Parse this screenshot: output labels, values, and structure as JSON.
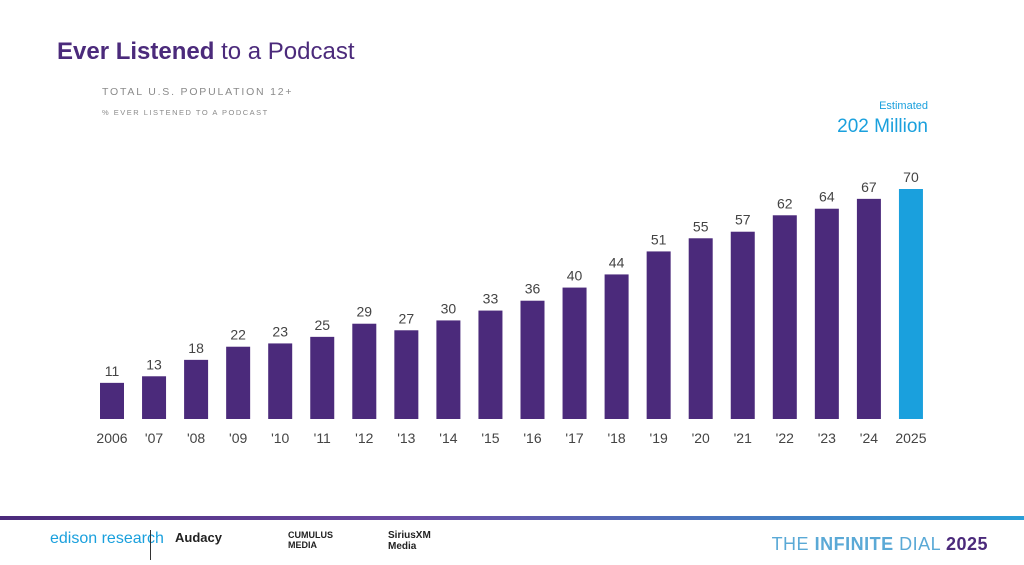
{
  "header": {
    "title_bold": "Ever Listened",
    "title_rest": " to a Podcast",
    "subtitle": "TOTAL U.S. POPULATION 12+",
    "subsubtitle": "% EVER LISTENED TO A PODCAST"
  },
  "annotation": {
    "label": "Estimated",
    "value": "202 Million"
  },
  "chart_data": {
    "type": "bar",
    "categories": [
      "2006",
      "'07",
      "'08",
      "'09",
      "'10",
      "'11",
      "'12",
      "'13",
      "'14",
      "'15",
      "'16",
      "'17",
      "'18",
      "'19",
      "'20",
      "'21",
      "'22",
      "'23",
      "'24",
      "2025"
    ],
    "values": [
      11,
      13,
      18,
      22,
      23,
      25,
      29,
      27,
      30,
      33,
      36,
      40,
      44,
      51,
      55,
      57,
      62,
      64,
      67,
      70
    ],
    "colors": {
      "default": "#4b2a7b",
      "highlight": "#1aa0dd"
    },
    "highlight_index": 19,
    "ylim": [
      0,
      70
    ],
    "grid": false
  },
  "footer": {
    "logos": [
      "edison research",
      "Audacy",
      "CUMULUS MEDIA",
      "SiriusXM Media"
    ],
    "dial_prefix": "THE ",
    "dial_bold": "INFINITE",
    "dial_rest": " DIAL",
    "dial_year": "2025"
  }
}
